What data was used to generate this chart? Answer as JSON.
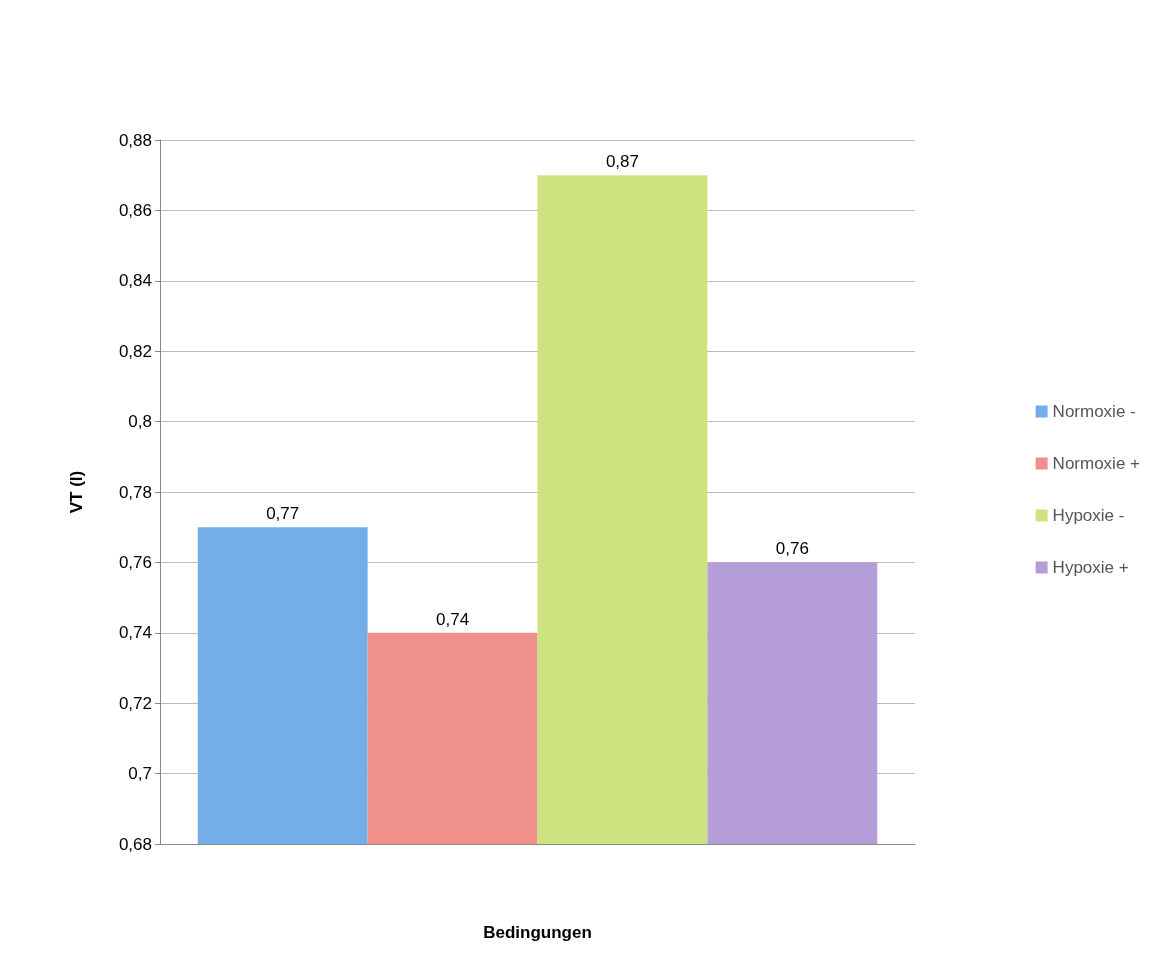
{
  "chart_data": {
    "type": "bar",
    "xlabel": "Bedingungen",
    "ylabel": "VT (l)",
    "categories": [
      null
    ],
    "series": [
      {
        "name": "Normoxie -",
        "color": "#74aee8",
        "values": [
          0.77
        ],
        "value_labels": [
          "0,77"
        ]
      },
      {
        "name": "Normoxie +",
        "color": "#f0908a",
        "values": [
          0.74
        ],
        "value_labels": [
          "0,74"
        ]
      },
      {
        "name": "Hypoxie -",
        "color": "#cde47e",
        "values": [
          0.87
        ],
        "value_labels": [
          "0,87"
        ]
      },
      {
        "name": "Hypoxie +",
        "color": "#b59dd8",
        "values": [
          0.76
        ],
        "value_labels": [
          "0,76"
        ]
      }
    ],
    "ylim": [
      0.68,
      0.88
    ],
    "yticks": [
      {
        "value": 0.68,
        "label": "0,68"
      },
      {
        "value": 0.7,
        "label": "0,7"
      },
      {
        "value": 0.72,
        "label": "0,72"
      },
      {
        "value": 0.74,
        "label": "0,74"
      },
      {
        "value": 0.76,
        "label": "0,76"
      },
      {
        "value": 0.78,
        "label": "0,78"
      },
      {
        "value": 0.8,
        "label": "0,8"
      },
      {
        "value": 0.82,
        "label": "0,82"
      },
      {
        "value": 0.84,
        "label": "0,84"
      },
      {
        "value": 0.86,
        "label": "0,86"
      },
      {
        "value": 0.88,
        "label": "0,88"
      }
    ],
    "grid": true,
    "legend": "right"
  }
}
